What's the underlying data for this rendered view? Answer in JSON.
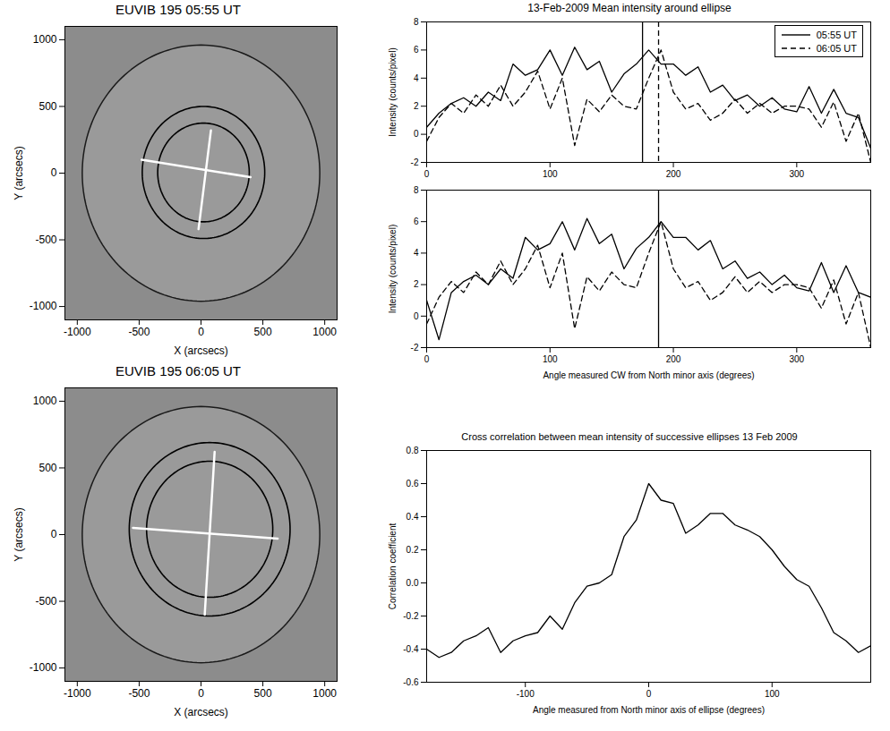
{
  "chart_data": [
    {
      "type": "image",
      "title": "EUVIB 195 05:55 UT",
      "x_label": "X (arcsecs)",
      "y_label": "Y (arcsecs)",
      "xlim": [
        -1100,
        1100
      ],
      "ylim": [
        -1100,
        1100
      ],
      "xticks": [
        -1000,
        -500,
        0,
        500,
        1000
      ],
      "yticks": [
        -1000,
        -500,
        0,
        500,
        1000
      ],
      "circles": [
        {
          "cx": 0,
          "cy": 0,
          "r": 960
        },
        {
          "cx": 20,
          "cy": 5,
          "r": 495
        },
        {
          "cx": 20,
          "cy": 5,
          "r": 370
        }
      ],
      "segments": [
        {
          "x": [
            -480,
            400
          ],
          "y": [
            100,
            -30
          ]
        },
        {
          "x": [
            80,
            -20
          ],
          "y": [
            320,
            -420
          ]
        }
      ]
    },
    {
      "type": "image",
      "title": "EUVIB 195 06:05 UT",
      "x_label": "X (arcsecs)",
      "y_label": "Y (arcsecs)",
      "xlim": [
        -1100,
        1100
      ],
      "ylim": [
        -1100,
        1100
      ],
      "xticks": [
        -1000,
        -500,
        0,
        500,
        1000
      ],
      "yticks": [
        -1000,
        -500,
        0,
        500,
        1000
      ],
      "circles": [
        {
          "cx": 0,
          "cy": 0,
          "r": 960
        },
        {
          "cx": 70,
          "cy": 40,
          "r": 650
        },
        {
          "cx": 70,
          "cy": 40,
          "r": 510
        }
      ],
      "segments": [
        {
          "x": [
            -550,
            620
          ],
          "y": [
            50,
            -30
          ]
        },
        {
          "x": [
            110,
            30
          ],
          "y": [
            620,
            -600
          ]
        }
      ]
    },
    {
      "type": "line",
      "title": "13-Feb-2009  Mean intensity around ellipse",
      "y_label": "Intensity (counts/pixel)",
      "xlim": [
        0,
        360
      ],
      "ylim": [
        -2,
        8
      ],
      "xticks": [
        0,
        100,
        200,
        300
      ],
      "yticks": [
        -2,
        0,
        2,
        4,
        6,
        8
      ],
      "legend": "top-right",
      "x": [
        0,
        10,
        20,
        30,
        40,
        50,
        60,
        70,
        80,
        90,
        100,
        110,
        120,
        130,
        140,
        150,
        160,
        170,
        180,
        190,
        200,
        210,
        220,
        230,
        240,
        250,
        260,
        270,
        280,
        290,
        300,
        310,
        320,
        330,
        340,
        350,
        360
      ],
      "series": [
        {
          "name": "05:55 UT",
          "color": "#000000",
          "line_style": "solid",
          "values": [
            0.5,
            1.5,
            2.2,
            2.6,
            2.0,
            3.0,
            2.4,
            5.0,
            4.2,
            4.6,
            6.0,
            4.2,
            6.2,
            4.6,
            5.2,
            3.0,
            4.3,
            5.0,
            6.0,
            5.0,
            5.0,
            4.2,
            4.8,
            3.0,
            3.5,
            2.4,
            2.8,
            2.0,
            2.6,
            1.8,
            1.6,
            3.4,
            1.5,
            3.2,
            1.5,
            1.2,
            -1.0
          ]
        },
        {
          "name": "06:05 UT",
          "color": "#000000",
          "line_style": "dashed",
          "values": [
            -0.5,
            1.2,
            2.2,
            1.5,
            2.8,
            2.0,
            3.5,
            2.0,
            3.0,
            4.5,
            1.8,
            4.0,
            -0.8,
            2.5,
            1.6,
            2.8,
            2.0,
            1.8,
            4.0,
            6.0,
            3.0,
            1.8,
            2.2,
            1.0,
            1.5,
            2.5,
            1.5,
            2.2,
            1.5,
            2.0,
            2.0,
            1.8,
            0.5,
            2.3,
            -0.5,
            1.5,
            -2.0
          ]
        }
      ],
      "vlines": [
        {
          "x": 175,
          "line_style": "solid"
        },
        {
          "x": 188,
          "line_style": "dashed"
        }
      ]
    },
    {
      "type": "line",
      "x_label": "Angle measured CW from North minor axis (degrees)",
      "y_label": "Intensity (counts/pixel)",
      "xlim": [
        0,
        360
      ],
      "ylim": [
        -2,
        8
      ],
      "xticks": [
        0,
        100,
        200,
        300
      ],
      "yticks": [
        -2,
        0,
        2,
        4,
        6,
        8
      ],
      "x": [
        0,
        10,
        20,
        30,
        40,
        50,
        60,
        70,
        80,
        90,
        100,
        110,
        120,
        130,
        140,
        150,
        160,
        170,
        180,
        190,
        200,
        210,
        220,
        230,
        240,
        250,
        260,
        270,
        280,
        290,
        300,
        310,
        320,
        330,
        340,
        350,
        360
      ],
      "series": [
        {
          "color": "#000000",
          "line_style": "solid",
          "values": [
            1.0,
            -1.5,
            1.5,
            2.2,
            2.6,
            2.0,
            3.0,
            2.4,
            5.0,
            4.2,
            4.6,
            6.0,
            4.2,
            6.2,
            4.6,
            5.2,
            3.0,
            4.3,
            5.0,
            6.0,
            5.0,
            5.0,
            4.2,
            4.8,
            3.0,
            3.5,
            2.4,
            2.8,
            2.0,
            2.6,
            1.8,
            1.6,
            3.4,
            1.5,
            3.2,
            1.5,
            1.2
          ]
        },
        {
          "color": "#000000",
          "line_style": "dashed",
          "values": [
            -0.5,
            1.2,
            2.2,
            1.5,
            2.8,
            2.0,
            3.5,
            2.0,
            3.0,
            4.5,
            1.8,
            4.0,
            -0.8,
            2.5,
            1.6,
            2.8,
            2.0,
            1.8,
            4.0,
            6.0,
            3.0,
            1.8,
            2.2,
            1.0,
            1.5,
            2.5,
            1.5,
            2.2,
            1.5,
            2.0,
            2.0,
            1.8,
            0.5,
            2.3,
            -0.5,
            1.5,
            -2.0
          ]
        }
      ],
      "vlines": [
        {
          "x": 188,
          "line_style": "solid"
        }
      ]
    },
    {
      "type": "line",
      "title": "Cross correlation between mean intensity of successive ellipses 13 Feb 2009",
      "x_label": "Angle measured from North minor axis of ellipse (degrees)",
      "y_label": "Correlation coefficient",
      "xlim": [
        -180,
        180
      ],
      "ylim": [
        -0.6,
        0.8
      ],
      "xticks": [
        -100,
        0,
        100
      ],
      "yticks": [
        -0.6,
        -0.4,
        -0.2,
        {
          "value": 0,
          "label": "0.0"
        },
        0.2,
        0.4,
        0.6,
        0.8
      ],
      "x": [
        -180,
        -170,
        -160,
        -150,
        -140,
        -130,
        -120,
        -110,
        -100,
        -90,
        -80,
        -70,
        -60,
        -50,
        -40,
        -30,
        -20,
        -10,
        0,
        10,
        20,
        30,
        40,
        50,
        60,
        70,
        80,
        90,
        100,
        110,
        120,
        130,
        140,
        150,
        160,
        170,
        180
      ],
      "series": [
        {
          "color": "#000000",
          "line_style": "solid",
          "values": [
            -0.4,
            -0.45,
            -0.42,
            -0.35,
            -0.32,
            -0.27,
            -0.42,
            -0.35,
            -0.32,
            -0.3,
            -0.2,
            -0.28,
            -0.12,
            -0.02,
            0.0,
            0.05,
            0.28,
            0.38,
            0.6,
            0.5,
            0.48,
            0.3,
            0.35,
            0.42,
            0.42,
            0.35,
            0.32,
            0.28,
            0.2,
            0.1,
            0.02,
            -0.02,
            -0.15,
            -0.3,
            -0.35,
            -0.42,
            -0.38
          ]
        }
      ]
    }
  ]
}
